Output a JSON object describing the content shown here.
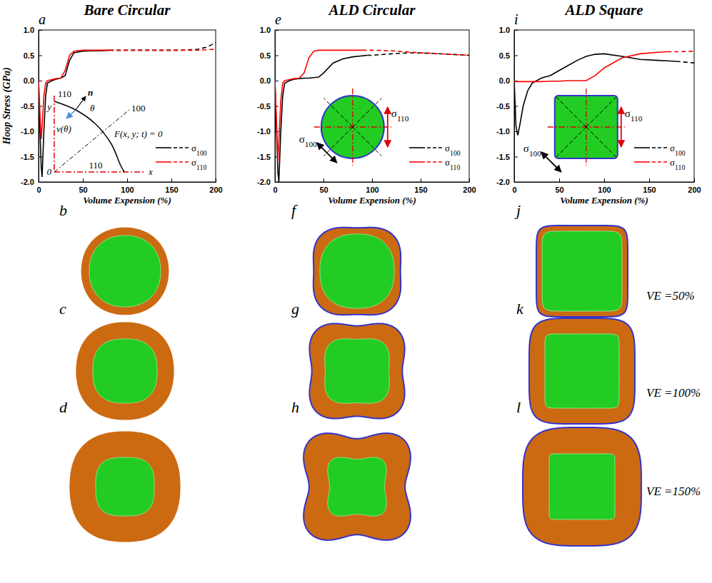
{
  "chart_data": [
    {
      "type": "line",
      "panel": "a",
      "title": "Bare Circular",
      "x_label": "Volume Expension (%)",
      "y_label": "Hoop Stress (GPa)",
      "xlim": [
        0,
        200
      ],
      "ylim": [
        -2,
        1
      ],
      "xticks": [
        0,
        50,
        100,
        150,
        200
      ],
      "yticks": [
        {
          "value": -2,
          "label": "-2.0"
        },
        {
          "value": -1.5,
          "label": "-1.5"
        },
        {
          "value": -1,
          "label": "-1.0"
        },
        {
          "value": -0.5,
          "label": "-0.5"
        },
        {
          "value": 0,
          "label": "0.0"
        },
        {
          "value": 0.5,
          "label": "0.5"
        },
        {
          "value": 1,
          "label": "1.0"
        }
      ],
      "legend": "lower right",
      "x": [
        0,
        2,
        3,
        4,
        6,
        8,
        10,
        15,
        20,
        25,
        30,
        35,
        40,
        50,
        60,
        70,
        80,
        100,
        120,
        140,
        160,
        180,
        190,
        200
      ],
      "series": [
        {
          "name": "σ100",
          "color": "#000000",
          "line_style": "solid",
          "values": [
            0,
            -1.2,
            -1.7,
            -1.9,
            -1.0,
            -0.3,
            -0.05,
            0,
            0.03,
            0.05,
            0.1,
            0.4,
            0.55,
            0.58,
            0.59,
            0.59,
            0.6,
            null,
            null,
            null,
            null,
            null,
            null,
            null
          ]
        },
        {
          "color": "#000000",
          "line_style": "dashed",
          "values": [
            null,
            null,
            null,
            null,
            null,
            null,
            null,
            null,
            null,
            null,
            null,
            null,
            null,
            null,
            null,
            null,
            0.6,
            0.6,
            0.6,
            0.6,
            0.6,
            0.62,
            0.66,
            0.75
          ]
        },
        {
          "name": "σ110",
          "color": "#ff0000",
          "line_style": "solid",
          "values": [
            0,
            -0.8,
            -1.15,
            -0.9,
            -0.3,
            -0.05,
            0,
            0.02,
            0.04,
            0.05,
            0.2,
            0.5,
            0.58,
            0.6,
            0.6,
            0.6,
            0.6,
            null,
            null,
            null,
            null,
            null,
            null,
            null
          ]
        },
        {
          "color": "#ff0000",
          "line_style": "dashed",
          "values": [
            null,
            null,
            null,
            null,
            null,
            null,
            null,
            null,
            null,
            null,
            null,
            null,
            null,
            null,
            null,
            null,
            0.6,
            0.6,
            0.6,
            0.6,
            0.6,
            0.6,
            0.61,
            0.62
          ]
        }
      ],
      "annotations": [
        "110",
        "n",
        "θ",
        "100",
        "y",
        "v(θ)",
        "F(x, y; t) = 0",
        "0",
        "x",
        "110"
      ]
    },
    {
      "type": "line",
      "panel": "e",
      "title": "ALD Circular",
      "x_label": "Volume Expension (%)",
      "xlim": [
        0,
        200
      ],
      "ylim": [
        -2,
        1
      ],
      "xticks": [
        0,
        50,
        100,
        150,
        200
      ],
      "yticks": [
        {
          "value": -2,
          "label": "-2.0"
        },
        {
          "value": -1.5,
          "label": "-1.5"
        },
        {
          "value": -1,
          "label": "-1.0"
        },
        {
          "value": -0.5,
          "label": "-0.5"
        },
        {
          "value": 0,
          "label": "0.0"
        },
        {
          "value": 0.5,
          "label": "0.5"
        },
        {
          "value": 1,
          "label": "1.0"
        }
      ],
      "legend": "lower right",
      "x": [
        0,
        2,
        3,
        4,
        6,
        8,
        10,
        15,
        20,
        25,
        30,
        35,
        40,
        45,
        50,
        60,
        70,
        80,
        90,
        95,
        100,
        120,
        140,
        160,
        180,
        200
      ],
      "series": [
        {
          "name": "σ100",
          "color": "#000000",
          "line_style": "solid",
          "values": [
            0,
            -1.2,
            -1.8,
            -2.0,
            -1.0,
            -0.3,
            -0.05,
            0,
            0.03,
            0.04,
            0.05,
            0.05,
            0.06,
            0.07,
            0.15,
            0.35,
            0.43,
            0.47,
            0.49,
            0.5,
            null,
            null,
            null,
            null,
            null,
            null
          ]
        },
        {
          "color": "#000000",
          "line_style": "dashed",
          "values": [
            null,
            null,
            null,
            null,
            null,
            null,
            null,
            null,
            null,
            null,
            null,
            null,
            null,
            null,
            null,
            null,
            null,
            null,
            null,
            0.5,
            0.5,
            0.53,
            0.55,
            0.54,
            0.52,
            0.5
          ]
        },
        {
          "name": "σ110",
          "color": "#ff0000",
          "line_style": "solid",
          "values": [
            0,
            -1.0,
            -1.6,
            -1.2,
            -0.4,
            -0.05,
            0,
            0.02,
            0.04,
            0.05,
            0.15,
            0.45,
            0.58,
            0.6,
            0.6,
            0.6,
            0.6,
            0.6,
            0.6,
            null,
            null,
            null,
            null,
            null,
            null,
            null
          ]
        },
        {
          "color": "#ff0000",
          "line_style": "dashed",
          "values": [
            null,
            null,
            null,
            null,
            null,
            null,
            null,
            null,
            null,
            null,
            null,
            null,
            null,
            null,
            null,
            null,
            null,
            null,
            0.6,
            0.6,
            0.6,
            0.59,
            0.56,
            0.54,
            0.52,
            0.5
          ]
        }
      ],
      "annotations": [
        "σ110",
        "σ100"
      ]
    },
    {
      "type": "line",
      "panel": "i",
      "title": "ALD Square",
      "x_label": "Volume Expension (%)",
      "xlim": [
        0,
        200
      ],
      "ylim": [
        -2,
        1
      ],
      "xticks": [
        0,
        50,
        100,
        150,
        200
      ],
      "yticks": [
        {
          "value": -2,
          "label": "-2.0"
        },
        {
          "value": -1.5,
          "label": "-1.5"
        },
        {
          "value": -1,
          "label": "-1.0"
        },
        {
          "value": -0.5,
          "label": "-0.5"
        },
        {
          "value": 0,
          "label": "0.0"
        },
        {
          "value": 0.5,
          "label": "0.5"
        },
        {
          "value": 1,
          "label": "1.0"
        }
      ],
      "legend": "lower right",
      "x": [
        0,
        2,
        4,
        6,
        10,
        15,
        20,
        30,
        40,
        50,
        60,
        70,
        80,
        90,
        100,
        120,
        140,
        160,
        170,
        180,
        200
      ],
      "series": [
        {
          "name": "σ100",
          "color": "#000000",
          "line_style": "solid",
          "values": [
            0,
            -0.9,
            -1.08,
            -0.9,
            -0.5,
            -0.2,
            -0.05,
            0.05,
            0.1,
            0.2,
            0.3,
            0.4,
            0.48,
            0.52,
            0.53,
            0.48,
            0.42,
            0.4,
            0.39,
            0.38,
            null
          ]
        },
        {
          "color": "#000000",
          "line_style": "dashed",
          "values": [
            null,
            null,
            null,
            null,
            null,
            null,
            null,
            null,
            null,
            null,
            null,
            null,
            null,
            null,
            null,
            null,
            null,
            null,
            null,
            0.38,
            0.35
          ]
        },
        {
          "name": "σ110",
          "color": "#ff0000",
          "line_style": "solid",
          "values": [
            -0.02,
            -0.02,
            -0.02,
            -0.02,
            -0.02,
            -0.02,
            -0.02,
            -0.02,
            -0.01,
            -0.01,
            0,
            0,
            0,
            0.1,
            0.25,
            0.45,
            0.53,
            0.56,
            0.57,
            null,
            null
          ]
        },
        {
          "color": "#ff0000",
          "line_style": "dashed",
          "values": [
            null,
            null,
            null,
            null,
            null,
            null,
            null,
            null,
            null,
            null,
            null,
            null,
            null,
            null,
            null,
            null,
            null,
            null,
            0.57,
            0.57,
            0.58
          ]
        }
      ],
      "annotations": [
        "σ110",
        "σ100"
      ]
    }
  ],
  "shape_panels": {
    "columns": [
      {
        "shape": "bare",
        "letters": [
          "b",
          "c",
          "d"
        ]
      },
      {
        "shape": "ald_circle",
        "letters": [
          "f",
          "g",
          "h"
        ]
      },
      {
        "shape": "ald_square",
        "letters": [
          "j",
          "k",
          "l"
        ]
      }
    ],
    "ve_labels": [
      "VE =50%",
      "VE =100%",
      "VE =150%"
    ]
  }
}
